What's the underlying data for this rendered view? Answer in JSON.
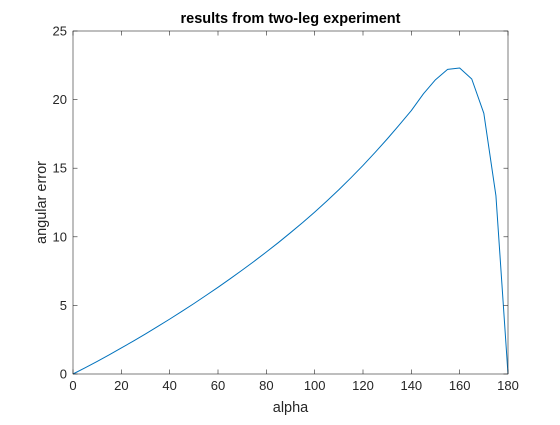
{
  "chart_data": {
    "type": "line",
    "title": "results from two-leg experiment",
    "xlabel": "alpha",
    "ylabel": "angular error",
    "xlim": [
      0,
      180
    ],
    "ylim": [
      0,
      25
    ],
    "xticks": [
      0,
      20,
      40,
      60,
      80,
      100,
      120,
      140,
      160,
      180
    ],
    "yticks": [
      0,
      5,
      10,
      15,
      20,
      25
    ],
    "grid": false,
    "legend": "none",
    "line_color": "#0072BD",
    "series": [
      {
        "x": [
          0,
          5,
          10,
          15,
          20,
          25,
          30,
          35,
          40,
          45,
          50,
          55,
          60,
          65,
          70,
          75,
          80,
          85,
          90,
          95,
          100,
          105,
          110,
          115,
          120,
          125,
          130,
          135,
          140,
          145,
          150,
          155,
          160,
          165,
          170,
          175,
          180
        ],
        "values": [
          0,
          0.45,
          0.92,
          1.4,
          1.9,
          2.4,
          2.92,
          3.46,
          4.0,
          4.56,
          5.13,
          5.72,
          6.32,
          6.94,
          7.57,
          8.22,
          8.89,
          9.58,
          10.3,
          11.03,
          11.8,
          12.6,
          13.43,
          14.3,
          15.2,
          16.15,
          17.13,
          18.15,
          19.2,
          20.42,
          21.45,
          22.2,
          22.3,
          21.5,
          19.0,
          13.0,
          0
        ]
      }
    ]
  }
}
